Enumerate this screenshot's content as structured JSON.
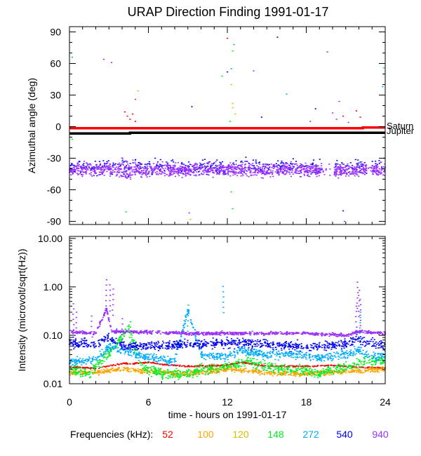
{
  "chart_data": {
    "title": "URAP Direction Finding  1991-01-17",
    "xlabel": "time - hours on 1991-01-17",
    "xlim": [
      0,
      24
    ],
    "xticks": [
      0,
      6,
      12,
      18,
      24
    ],
    "xtick_labels": [
      "0",
      "6",
      "12",
      "18",
      "24"
    ],
    "panels": [
      {
        "name": "azimuth",
        "type": "scatter",
        "ylabel": "Azimuthal angle (deg)",
        "ylim": [
          -93,
          95
        ],
        "yticks": [
          90,
          60,
          30,
          0,
          -30,
          -60,
          -90
        ],
        "ytick_labels": [
          "90",
          "60",
          "30",
          "0",
          "-30",
          "-60",
          "-90"
        ],
        "reference_lines": [
          {
            "name": "Saturn",
            "color": "#ff0000",
            "points": [
              [
                0,
                -1.5
              ],
              [
                22.3,
                -1.5
              ],
              [
                22.3,
                -0.8
              ],
              [
                24,
                -0.8
              ]
            ]
          },
          {
            "name": "Jupiter",
            "color": "#000000",
            "points": [
              [
                0,
                -6.5
              ],
              [
                4.6,
                -6.5
              ],
              [
                4.6,
                -5.8
              ],
              [
                24,
                -5.8
              ]
            ]
          }
        ],
        "band": {
          "freq": "940",
          "center": -41,
          "spread": 9,
          "gaps": [
            [
              19.2,
              20.1
            ],
            [
              22.6,
              23.0
            ]
          ]
        },
        "band_secondary": {
          "freq": "540",
          "center": -38,
          "spread": 10
        },
        "scatter_points": [
          {
            "freq": "52",
            "x": 4.2,
            "y": 14
          },
          {
            "freq": "52",
            "x": 4.4,
            "y": 10
          },
          {
            "freq": "52",
            "x": 4.6,
            "y": 7
          },
          {
            "freq": "52",
            "x": 4.8,
            "y": 12
          },
          {
            "freq": "52",
            "x": 5.0,
            "y": 5
          },
          {
            "freq": "52",
            "x": 20.8,
            "y": 10
          },
          {
            "freq": "52",
            "x": 21.8,
            "y": 15
          },
          {
            "freq": "52",
            "x": 22.1,
            "y": 9
          },
          {
            "freq": "52",
            "x": 12.0,
            "y": 84
          },
          {
            "freq": "100",
            "x": 5.2,
            "y": 34
          },
          {
            "freq": "100",
            "x": 12.4,
            "y": 22
          },
          {
            "freq": "100",
            "x": 9.2,
            "y": -88
          },
          {
            "freq": "120",
            "x": 12.3,
            "y": 40
          },
          {
            "freq": "120",
            "x": 12.4,
            "y": 18
          },
          {
            "freq": "120",
            "x": 12.6,
            "y": 12
          },
          {
            "freq": "148",
            "x": 12.2,
            "y": 5
          },
          {
            "freq": "148",
            "x": 12.3,
            "y": -62
          },
          {
            "freq": "148",
            "x": 12.4,
            "y": -78
          },
          {
            "freq": "148",
            "x": 12.4,
            "y": 72
          },
          {
            "freq": "148",
            "x": 4.3,
            "y": -81
          },
          {
            "freq": "148",
            "x": 0.2,
            "y": -12
          },
          {
            "freq": "148",
            "x": 23.9,
            "y": 56
          },
          {
            "freq": "148",
            "x": 11.6,
            "y": 48
          },
          {
            "freq": "272",
            "x": 12.5,
            "y": 78
          },
          {
            "freq": "272",
            "x": 0.2,
            "y": 66
          },
          {
            "freq": "272",
            "x": 23.8,
            "y": 38
          },
          {
            "freq": "272",
            "x": 16.5,
            "y": 31
          },
          {
            "freq": "272",
            "x": 12.3,
            "y": 55
          },
          {
            "freq": "540",
            "x": 15.8,
            "y": 85
          },
          {
            "freq": "540",
            "x": 12.0,
            "y": 52
          },
          {
            "freq": "540",
            "x": 9.3,
            "y": 19
          },
          {
            "freq": "540",
            "x": 20.8,
            "y": -80
          },
          {
            "freq": "540",
            "x": 14.6,
            "y": 9
          },
          {
            "freq": "540",
            "x": 18.7,
            "y": 17
          },
          {
            "freq": "940",
            "x": 2.6,
            "y": 64
          },
          {
            "freq": "940",
            "x": 3.2,
            "y": 61
          },
          {
            "freq": "940",
            "x": 20.5,
            "y": 24
          },
          {
            "freq": "940",
            "x": 20.0,
            "y": 13
          },
          {
            "freq": "940",
            "x": 20.3,
            "y": 7
          },
          {
            "freq": "940",
            "x": 21.2,
            "y": 4
          },
          {
            "freq": "940",
            "x": 19.6,
            "y": 71
          },
          {
            "freq": "940",
            "x": 14.0,
            "y": 53
          },
          {
            "freq": "940",
            "x": 5.0,
            "y": 26
          },
          {
            "freq": "940",
            "x": 18.3,
            "y": 5
          },
          {
            "freq": "940",
            "x": 9.1,
            "y": -82
          },
          {
            "freq": "940",
            "x": 20.9,
            "y": -90
          }
        ]
      },
      {
        "name": "intensity",
        "type": "scatter",
        "yscale": "log",
        "ylabel": "Intensity (microvolt/sqrt(Hz))",
        "ylim": [
          0.01,
          11
        ],
        "yticks": [
          10,
          1,
          0.1,
          0.01
        ],
        "ytick_labels": [
          "10.00",
          "1.00",
          "0.10",
          "0.01"
        ],
        "series": [
          {
            "freq": "52",
            "baseline": 0.021,
            "jitter": 0.05,
            "profile": [
              [
                0,
                0.022
              ],
              [
                2,
                0.021
              ],
              [
                4,
                0.026
              ],
              [
                5,
                0.026
              ],
              [
                6,
                0.028
              ],
              [
                7,
                0.025
              ],
              [
                9,
                0.023
              ],
              [
                12,
                0.024
              ],
              [
                13,
                0.028
              ],
              [
                15,
                0.023
              ],
              [
                18,
                0.023
              ],
              [
                20,
                0.024
              ],
              [
                22,
                0.022
              ],
              [
                24,
                0.021
              ]
            ]
          },
          {
            "freq": "100",
            "baseline": 0.019,
            "jitter": 0.18,
            "profile": [
              [
                0,
                0.017
              ],
              [
                2,
                0.017
              ],
              [
                4,
                0.02
              ],
              [
                6,
                0.018
              ],
              [
                9,
                0.016
              ],
              [
                12,
                0.02
              ],
              [
                15,
                0.017
              ],
              [
                18,
                0.016
              ],
              [
                21,
                0.018
              ],
              [
                24,
                0.02
              ]
            ]
          },
          {
            "freq": "148",
            "baseline": 0.018,
            "jitter": 0.35,
            "profile": [
              [
                0,
                0.02
              ],
              [
                1.5,
                0.016
              ],
              [
                2.5,
                0.03
              ],
              [
                3.5,
                0.06
              ],
              [
                4.5,
                0.15
              ],
              [
                5.5,
                0.022
              ],
              [
                7,
                0.016
              ],
              [
                9,
                0.016
              ],
              [
                10,
                0.02
              ],
              [
                12,
                0.022
              ],
              [
                13.5,
                0.03
              ],
              [
                15,
                0.022
              ],
              [
                17,
                0.02
              ],
              [
                19,
                0.017
              ],
              [
                21,
                0.022
              ],
              [
                22.5,
                0.03
              ],
              [
                24,
                0.03
              ]
            ]
          },
          {
            "freq": "272",
            "baseline": 0.028,
            "jitter": 0.3,
            "profile": [
              [
                0,
                0.028
              ],
              [
                2,
                0.03
              ],
              [
                3,
                0.06
              ],
              [
                4,
                0.05
              ],
              [
                5,
                0.04
              ],
              [
                6,
                0.035
              ],
              [
                8,
                0.028
              ],
              [
                9,
                0.35
              ],
              [
                10,
                0.04
              ],
              [
                12,
                0.035
              ],
              [
                13,
                0.05
              ],
              [
                15,
                0.04
              ],
              [
                17,
                0.04
              ],
              [
                19,
                0.035
              ],
              [
                21,
                0.04
              ],
              [
                22,
                0.05
              ],
              [
                23,
                0.035
              ],
              [
                24,
                0.04
              ]
            ]
          },
          {
            "freq": "540",
            "baseline": 0.065,
            "jitter": 0.32,
            "profile": [
              [
                0,
                0.07
              ],
              [
                2,
                0.065
              ],
              [
                3,
                0.09
              ],
              [
                4,
                0.06
              ],
              [
                6,
                0.06
              ],
              [
                9,
                0.065
              ],
              [
                12,
                0.07
              ],
              [
                15,
                0.065
              ],
              [
                18,
                0.06
              ],
              [
                20,
                0.06
              ],
              [
                22,
                0.08
              ],
              [
                24,
                0.06
              ]
            ]
          },
          {
            "freq": "940",
            "baseline": 0.11,
            "jitter": 0.12,
            "profile": [
              [
                0,
                0.12
              ],
              [
                2,
                0.11
              ],
              [
                2.8,
                0.35
              ],
              [
                3.2,
                0.12
              ],
              [
                4,
                0.12
              ],
              [
                9,
                0.11
              ],
              [
                12,
                0.11
              ],
              [
                18,
                0.11
              ],
              [
                21,
                0.1
              ],
              [
                22,
                0.12
              ],
              [
                24,
                0.11
              ]
            ]
          }
        ],
        "spikes": [
          {
            "freq": "940",
            "x": 2.8,
            "y": 1.4
          },
          {
            "freq": "940",
            "x": 3.1,
            "y": 1.1
          },
          {
            "freq": "940",
            "x": 3.3,
            "y": 0.9
          },
          {
            "freq": "940",
            "x": 0.3,
            "y": 0.45
          },
          {
            "freq": "940",
            "x": 0.5,
            "y": 0.3
          },
          {
            "freq": "940",
            "x": 1.7,
            "y": 0.25
          },
          {
            "freq": "940",
            "x": 4.0,
            "y": 0.22
          },
          {
            "freq": "940",
            "x": 21.9,
            "y": 1.25
          },
          {
            "freq": "940",
            "x": 22.0,
            "y": 0.85
          },
          {
            "freq": "940",
            "x": 22.1,
            "y": 0.55
          },
          {
            "freq": "940",
            "x": 21.8,
            "y": 0.4
          },
          {
            "freq": "272",
            "x": 9.0,
            "y": 0.42
          },
          {
            "freq": "272",
            "x": 22.1,
            "y": 0.3
          },
          {
            "freq": "148",
            "x": 4.6,
            "y": 0.19
          },
          {
            "freq": "272",
            "x": 11.7,
            "y": 1.02
          }
        ]
      }
    ],
    "legend": {
      "label": "Frequencies (kHz):",
      "entries": [
        {
          "label": "52",
          "color": "#ff0000"
        },
        {
          "label": "100",
          "color": "#ffa500"
        },
        {
          "label": "120",
          "color": "#d4c000"
        },
        {
          "label": "148",
          "color": "#00ee22"
        },
        {
          "label": "272",
          "color": "#00aaff"
        },
        {
          "label": "540",
          "color": "#0000ee"
        },
        {
          "label": "940",
          "color": "#9a30ff"
        }
      ]
    }
  }
}
